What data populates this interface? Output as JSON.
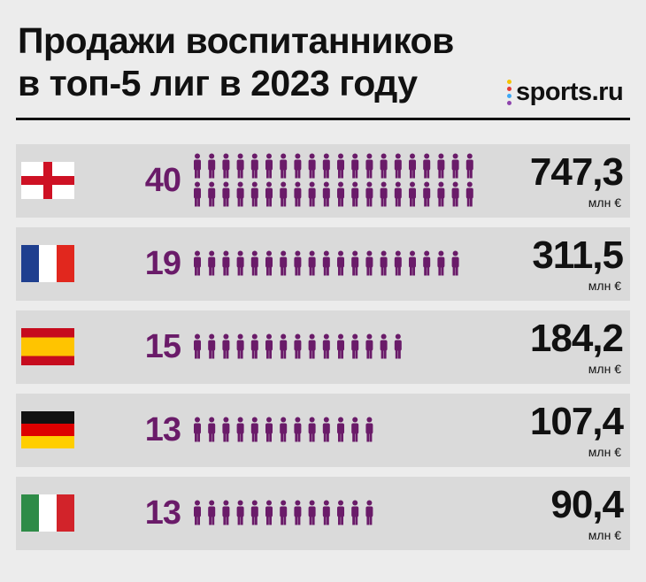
{
  "title_line1": "Продажи воспитанников",
  "title_line2": "в топ-5 лиг в 2023 году",
  "brand": {
    "text": "sports.ru",
    "dot_colors": [
      "#f5c400",
      "#e53935",
      "#3fa9f5",
      "#8e44ad"
    ]
  },
  "colors": {
    "person": "#6a1b69",
    "row_bg": "#dadada",
    "page_bg": "#ececec"
  },
  "chart_data": {
    "type": "table",
    "title": "Продажи воспитанников в топ-5 лиг в 2023 году",
    "unit": "млн €",
    "rows": [
      {
        "flag": "england",
        "count": "40",
        "count_value": 40,
        "value": "747,3",
        "unit": "млн €"
      },
      {
        "flag": "france",
        "count": "19",
        "count_value": 19,
        "value": "311,5",
        "unit": "млн €"
      },
      {
        "flag": "spain",
        "count": "15",
        "count_value": 15,
        "value": "184,2",
        "unit": "млн €"
      },
      {
        "flag": "germany",
        "count": "13",
        "count_value": 13,
        "value": "107,4",
        "unit": "млн €"
      },
      {
        "flag": "italy",
        "count": "13",
        "count_value": 13,
        "value": "90,4",
        "unit": "млн €"
      }
    ]
  }
}
